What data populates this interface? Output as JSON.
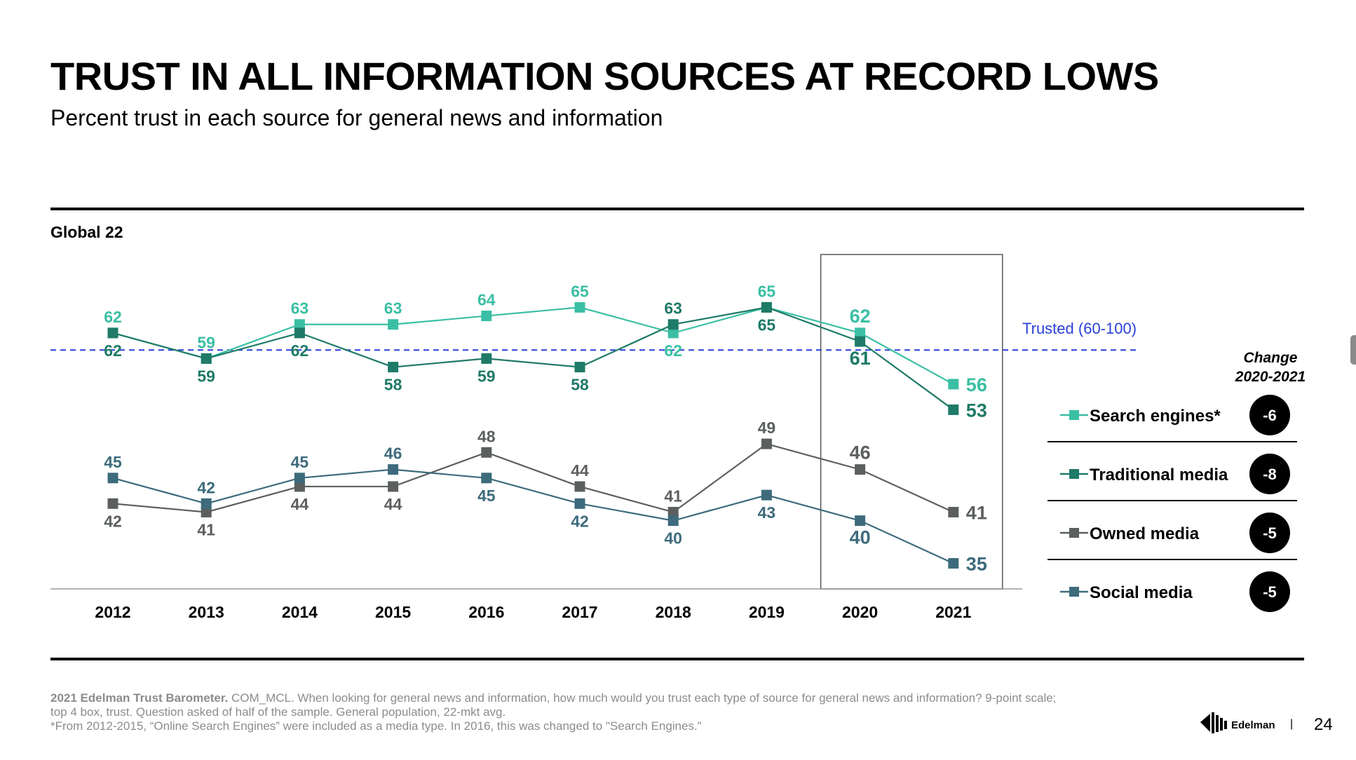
{
  "title": "TRUST IN ALL INFORMATION SOURCES AT RECORD LOWS",
  "subtitle": "Percent trust in each source for general news and information",
  "region_label": "Global 22",
  "change_header": {
    "line1": "Change",
    "line2": "2020-2021"
  },
  "footer": {
    "bold": "2021 Edelman Trust Barometer.",
    "line1": " COM_MCL. When looking for general news and information, how much would you trust each type of source for general news and information? 9-point scale;",
    "line2": "top 4 box, trust. Question asked of half of the sample. General population, 22-mkt avg.",
    "line3": "*From 2012-2015, “Online Search Engines” were included as a media type. In 2016, this was changed to \"Search Engines.\""
  },
  "logo_text": "Edelman",
  "page_number": "24",
  "chart_data": {
    "type": "line",
    "categories": [
      "2012",
      "2013",
      "2014",
      "2015",
      "2016",
      "2017",
      "2018",
      "2019",
      "2020",
      "2021"
    ],
    "series": [
      {
        "name": "Search engines*",
        "color": "#3bbfa4",
        "values": [
          62,
          59,
          63,
          63,
          64,
          65,
          62,
          65,
          62,
          56
        ],
        "change": "-6"
      },
      {
        "name": "Traditional media",
        "color": "#1f7a68",
        "values": [
          62,
          59,
          62,
          58,
          59,
          58,
          63,
          65,
          61,
          53
        ],
        "change": "-8"
      },
      {
        "name": "Owned media",
        "color": "#5b5f5e",
        "values": [
          42,
          41,
          44,
          44,
          48,
          44,
          41,
          49,
          46,
          41
        ],
        "change": "-5"
      },
      {
        "name": "Social media",
        "color": "#3d6b7c",
        "values": [
          45,
          42,
          45,
          46,
          45,
          42,
          40,
          43,
          40,
          35
        ],
        "change": "-5"
      }
    ],
    "reference_line": {
      "value": 60,
      "label": "Trusted (60-100)",
      "color": "#2a3fd6",
      "style": "dashed"
    },
    "highlight_box": {
      "from": "2020",
      "to": "2021"
    },
    "legend_position": "right",
    "grid": false
  }
}
